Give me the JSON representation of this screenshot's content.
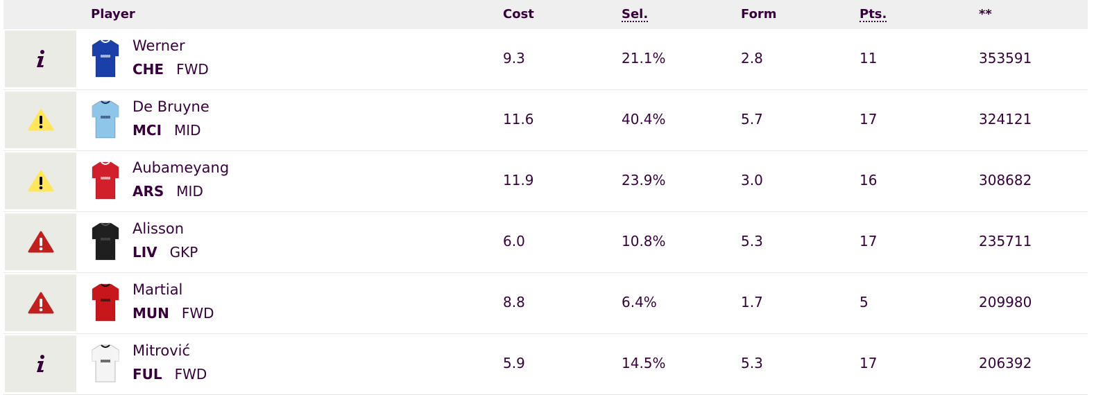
{
  "headers": {
    "player": "Player",
    "cost": "Cost",
    "sel": "Sel.",
    "form": "Form",
    "pts": "Pts.",
    "extra": "**"
  },
  "colors": {
    "info": "#37003c",
    "warning": "#ffe65b",
    "danger": "#c0201e"
  },
  "players": [
    {
      "status": "info-icon",
      "name": "Werner",
      "team": "CHE",
      "pos": "FWD",
      "cost": "9.3",
      "sel": "21.1%",
      "form": "2.8",
      "pts": "11",
      "extra": "353591",
      "shirt": {
        "body": "#1b3fa8",
        "sleeve": "#1b3fa8",
        "trim": "#ffffff"
      }
    },
    {
      "status": "warning-icon",
      "name": "De Bruyne",
      "team": "MCI",
      "pos": "MID",
      "cost": "11.6",
      "sel": "40.4%",
      "form": "5.7",
      "pts": "17",
      "extra": "324121",
      "shirt": {
        "body": "#8ec6ea",
        "sleeve": "#8ec6ea",
        "trim": "#1c2c5b"
      }
    },
    {
      "status": "warning-icon",
      "name": "Aubameyang",
      "team": "ARS",
      "pos": "MID",
      "cost": "11.9",
      "sel": "23.9%",
      "form": "3.0",
      "pts": "16",
      "extra": "308682",
      "shirt": {
        "body": "#d11f2b",
        "sleeve": "#d11f2b",
        "trim": "#ffffff"
      }
    },
    {
      "status": "danger-icon",
      "name": "Alisson",
      "team": "LIV",
      "pos": "GKP",
      "cost": "6.0",
      "sel": "10.8%",
      "form": "5.3",
      "pts": "17",
      "extra": "235711",
      "shirt": {
        "body": "#1f1f1f",
        "sleeve": "#1f1f1f",
        "trim": "#555555"
      }
    },
    {
      "status": "danger-icon",
      "name": "Martial",
      "team": "MUN",
      "pos": "FWD",
      "cost": "8.8",
      "sel": "6.4%",
      "form": "1.7",
      "pts": "5",
      "extra": "209980",
      "shirt": {
        "body": "#c8161d",
        "sleeve": "#c8161d",
        "trim": "#111111"
      }
    },
    {
      "status": "info-icon",
      "name": "Mitrović",
      "team": "FUL",
      "pos": "FWD",
      "cost": "5.9",
      "sel": "14.5%",
      "form": "5.3",
      "pts": "17",
      "extra": "206392",
      "shirt": {
        "body": "#f4f4f4",
        "sleeve": "#f4f4f4",
        "trim": "#111111"
      }
    }
  ]
}
